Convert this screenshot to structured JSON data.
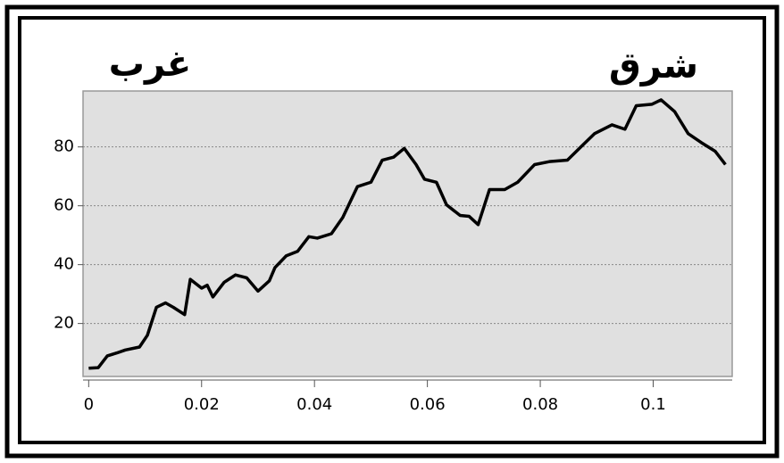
{
  "chart_data": {
    "type": "line",
    "annotations": [
      "غرب",
      "شرق"
    ],
    "x": [
      0,
      0.0017,
      0.0033,
      0.005,
      0.0065,
      0.009,
      0.0104,
      0.012,
      0.0136,
      0.015,
      0.017,
      0.018,
      0.02,
      0.021,
      0.022,
      0.024,
      0.026,
      0.028,
      0.03,
      0.032,
      0.033,
      0.035,
      0.037,
      0.039,
      0.0405,
      0.043,
      0.045,
      0.0476,
      0.05,
      0.052,
      0.054,
      0.0559,
      0.058,
      0.0595,
      0.0616,
      0.0634,
      0.0658,
      0.0674,
      0.069,
      0.071,
      0.0737,
      0.076,
      0.079,
      0.0816,
      0.0848,
      0.0872,
      0.0896,
      0.0927,
      0.095,
      0.097,
      0.0998,
      0.1014,
      0.1038,
      0.1062,
      0.1085,
      0.111,
      0.1128
    ],
    "series": [
      {
        "color": "#000000",
        "values": [
          4.8,
          5,
          9,
          10,
          11,
          12,
          16,
          25.5,
          27,
          25.5,
          23,
          35,
          32,
          33,
          29,
          34,
          36.5,
          35.5,
          31,
          34.5,
          39,
          43,
          44.5,
          49.5,
          49,
          50.5,
          56,
          66.5,
          68,
          75.5,
          76.5,
          79.5,
          74,
          69,
          68,
          60.3,
          56.7,
          56.4,
          53.6,
          65.5,
          65.5,
          68,
          74,
          75,
          75.5,
          80,
          84.5,
          87.5,
          86,
          94,
          94.5,
          96,
          92,
          84.5,
          81.5,
          78.5,
          74
        ]
      }
    ],
    "xlim": [
      -0.001,
      0.114
    ],
    "ylim": [
      2,
      99
    ],
    "xticks": [
      0,
      0.02,
      0.04,
      0.06,
      0.08,
      0.1
    ],
    "yticks": [
      20,
      40,
      60,
      80
    ],
    "grid": true
  }
}
